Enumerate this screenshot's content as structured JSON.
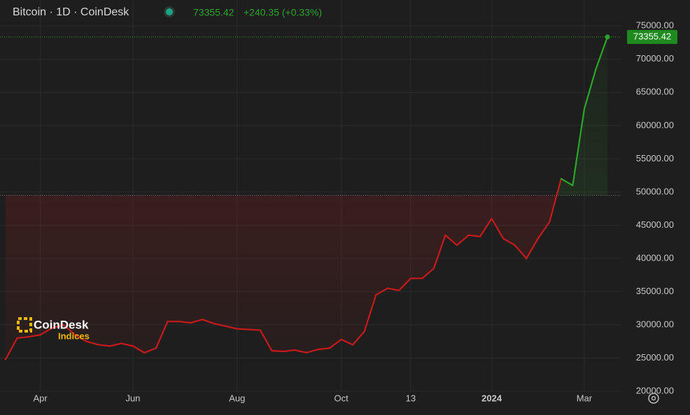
{
  "chart_data": {
    "type": "line",
    "title": "Bitcoin · 1D · CoinDesk",
    "change": "+240.35 (+0.33%)",
    "watermark": {
      "brand": "CoinDesk",
      "sub": "Indices"
    },
    "categories": [
      null,
      null,
      null,
      "Apr",
      null,
      null,
      null,
      null,
      null,
      null,
      null,
      "Jun",
      null,
      null,
      null,
      null,
      null,
      null,
      null,
      null,
      "Aug",
      null,
      null,
      null,
      null,
      null,
      null,
      null,
      null,
      "Oct",
      null,
      null,
      null,
      null,
      null,
      "13",
      null,
      null,
      null,
      null,
      null,
      null,
      "2024",
      null,
      null,
      null,
      null,
      null,
      null,
      null,
      "Mar",
      null,
      null
    ],
    "series": [
      {
        "name": "Bitcoin",
        "color_up": "#2aa52a",
        "color_down": "#c81a1a",
        "values": [
          24800,
          28000,
          28200,
          28500,
          29500,
          30000,
          28500,
          27500,
          27000,
          26800,
          27200,
          26800,
          25800,
          26500,
          30500,
          30500,
          30300,
          30800,
          30200,
          29800,
          29400,
          29300,
          29200,
          26100,
          26000,
          26200,
          25800,
          26300,
          26500,
          27800,
          27000,
          29000,
          34500,
          35500,
          35200,
          37000,
          37000,
          38500,
          43500,
          42000,
          43500,
          43300,
          46000,
          43000,
          42000,
          40000,
          43000,
          45500,
          52000,
          51000,
          62500,
          68500,
          73355.42
        ]
      }
    ],
    "baseline": 49500,
    "ylim": [
      20000,
      76500
    ],
    "yticks": [
      {
        "value": 20000,
        "label": "20000.00"
      },
      {
        "value": 25000,
        "label": "25000.00"
      },
      {
        "value": 30000,
        "label": "30000.00"
      },
      {
        "value": 35000,
        "label": "35000.00"
      },
      {
        "value": 40000,
        "label": "40000.00"
      },
      {
        "value": 45000,
        "label": "45000.00"
      },
      {
        "value": 50000,
        "label": "50000.00"
      },
      {
        "value": 55000,
        "label": "55000.00"
      },
      {
        "value": 60000,
        "label": "60000.00"
      },
      {
        "value": 65000,
        "label": "65000.00"
      },
      {
        "value": 70000,
        "label": "70000.00"
      },
      {
        "value": 75000,
        "label": "75000.00"
      }
    ],
    "grid": true
  }
}
